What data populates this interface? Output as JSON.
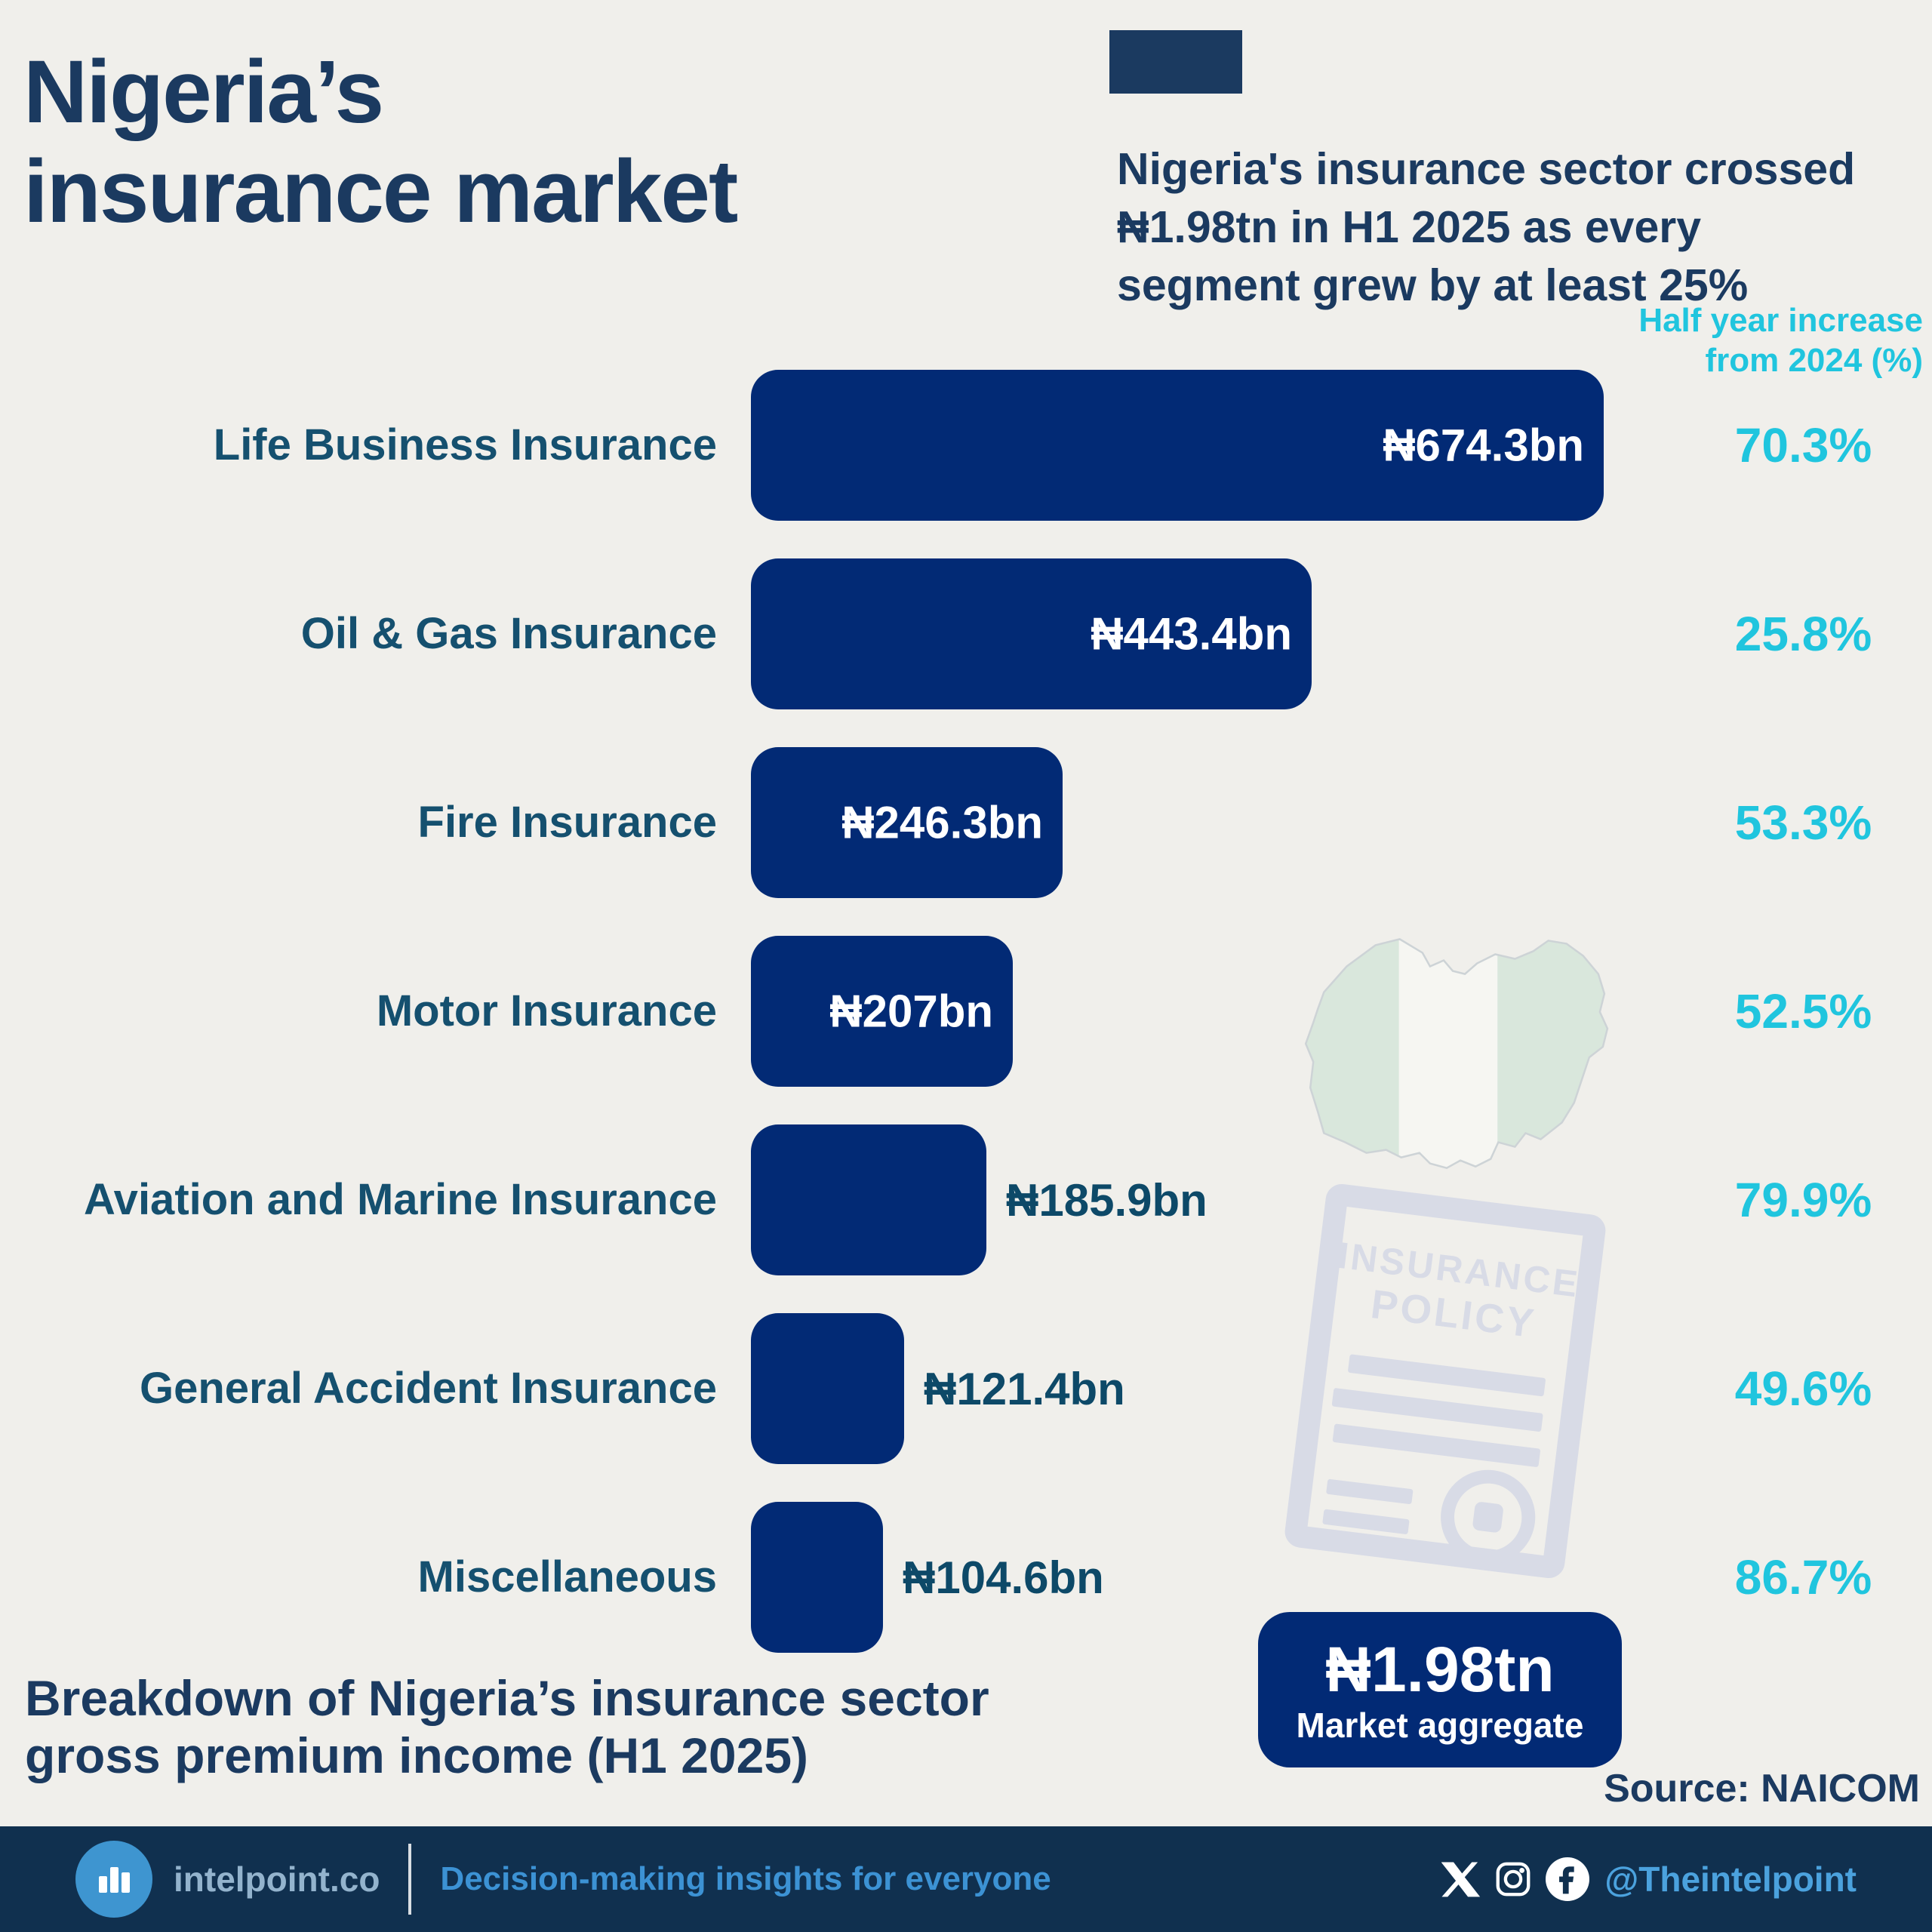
{
  "page": {
    "title_line1": "Nigeria’s",
    "title_line2": "insurance market"
  },
  "headline": {
    "line1": "Nigeria's insurance sector crossed",
    "line2": "₦1.98tn in H1 2025 as every",
    "line3": "segment grew by at least 25%"
  },
  "pct_header": {
    "line1": "Half year increase",
    "line2": "from 2024 (%)"
  },
  "chart_data": {
    "type": "bar",
    "orientation": "horizontal",
    "title": "Breakdown of Nigeria’s insurance sector gross premium income (H1 2025)",
    "xlabel": "",
    "ylabel": "",
    "xlim": [
      0,
      674.3
    ],
    "grid": false,
    "categories": [
      "Life Business Insurance",
      "Oil & Gas Insurance",
      "Fire Insurance",
      "Motor Insurance",
      "Aviation and Marine Insurance",
      "General Accident Insurance",
      "Miscellaneous"
    ],
    "series": [
      {
        "name": "Gross premium income (₦bn)",
        "values": [
          674.3,
          443.4,
          246.3,
          207,
          185.9,
          121.4,
          104.6
        ],
        "labels": [
          "₦674.3bn",
          "₦443.4bn",
          "₦246.3bn",
          "₦207bn",
          "₦185.9bn",
          "₦121.4bn",
          "₦104.6bn"
        ]
      },
      {
        "name": "Half year increase from 2024 (%)",
        "values": [
          70.3,
          25.8,
          53.3,
          52.5,
          79.9,
          49.6,
          86.7
        ],
        "labels": [
          "70.3%",
          "25.8%",
          "53.3%",
          "52.5%",
          "79.9%",
          "49.6%",
          "86.7%"
        ]
      }
    ],
    "value_label_inside": [
      true,
      true,
      true,
      true,
      false,
      false,
      false
    ],
    "bar_color": "#022a75",
    "pct_color": "#20c5de",
    "legend_position": "none"
  },
  "aggregate": {
    "value": "₦1.98tn",
    "label": "Market aggregate"
  },
  "caption": {
    "line1": "Breakdown of Nigeria’s insurance sector",
    "line2": "gross premium income (H1 2025)"
  },
  "source": "Source: NAICOM",
  "watermark": {
    "doc_title_line1": "INSURANCE",
    "doc_title_line2": "POLICY"
  },
  "footer": {
    "brand": "intelpoint.co",
    "tagline": "Decision-making insights for everyone",
    "handle": "@Theintelpoint",
    "icons": [
      "x-icon",
      "instagram-icon",
      "facebook-icon"
    ]
  },
  "colors": {
    "bg": "#f0efeb",
    "bar": "#022a75",
    "navy": "#1b3a60",
    "cat": "#15506f",
    "val_out": "#0d4968",
    "cyan": "#20c5de",
    "footer_bg": "#10304f",
    "brand": "#93b3cd",
    "tagline": "#3c92d4",
    "handle": "#4ba2de",
    "logo": "#3e95d0",
    "map_green": "#d9e7dc",
    "map_white": "#f6f6f2",
    "map_outline": "#cdd3d6",
    "doc": "#d8dbe6"
  }
}
